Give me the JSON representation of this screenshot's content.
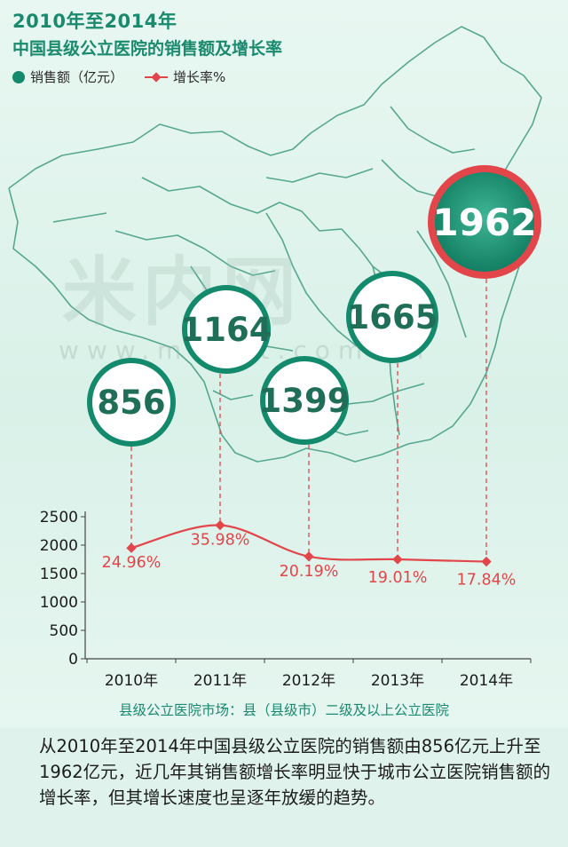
{
  "header": {
    "title": "2010年至2014年",
    "subtitle": "中国县级公立医院的销售额及增长率"
  },
  "legend": {
    "sales_label": "销售额（亿元）",
    "growth_label": "增长率%"
  },
  "watermark": {
    "text": "米内网",
    "url": "www.menet.com.cn"
  },
  "colors": {
    "sales_circle": "#138a6c",
    "highlight_circle": "#e2464a",
    "growth_line": "#e2464a",
    "text_green": "#1a8a6e"
  },
  "chart_data": {
    "type": "line",
    "categories": [
      "2010年",
      "2011年",
      "2012年",
      "2013年",
      "2014年"
    ],
    "series": [
      {
        "name": "销售额（亿元）",
        "values": [
          856,
          1164,
          1399,
          1665,
          1962
        ],
        "labels": [
          "856",
          "1164",
          "1399",
          "1665",
          "1962"
        ]
      },
      {
        "name": "增长率%",
        "values": [
          24.96,
          35.98,
          20.19,
          19.01,
          17.84
        ],
        "labels": [
          "24.96%",
          "35.98%",
          "20.19%",
          "19.01%",
          "17.84%"
        ],
        "plotted_values": [
          1950,
          2350,
          1800,
          1750,
          1710
        ]
      }
    ],
    "yaxis_ticks": [
      "0",
      "500",
      "1000",
      "1500",
      "2000",
      "2500"
    ],
    "ylim": [
      0,
      2500
    ],
    "highlight_index": 4
  },
  "footer": {
    "note": "县级公立医院市场：县（县级市）二级及以上公立医院",
    "paragraph": "从2010年至2014年中国县级公立医院的销售额由856亿元上升至1962亿元，近几年其销售额增长率明显快于城市公立医院销售额的增长率，但其增长速度也呈逐年放缓的趋势。"
  }
}
